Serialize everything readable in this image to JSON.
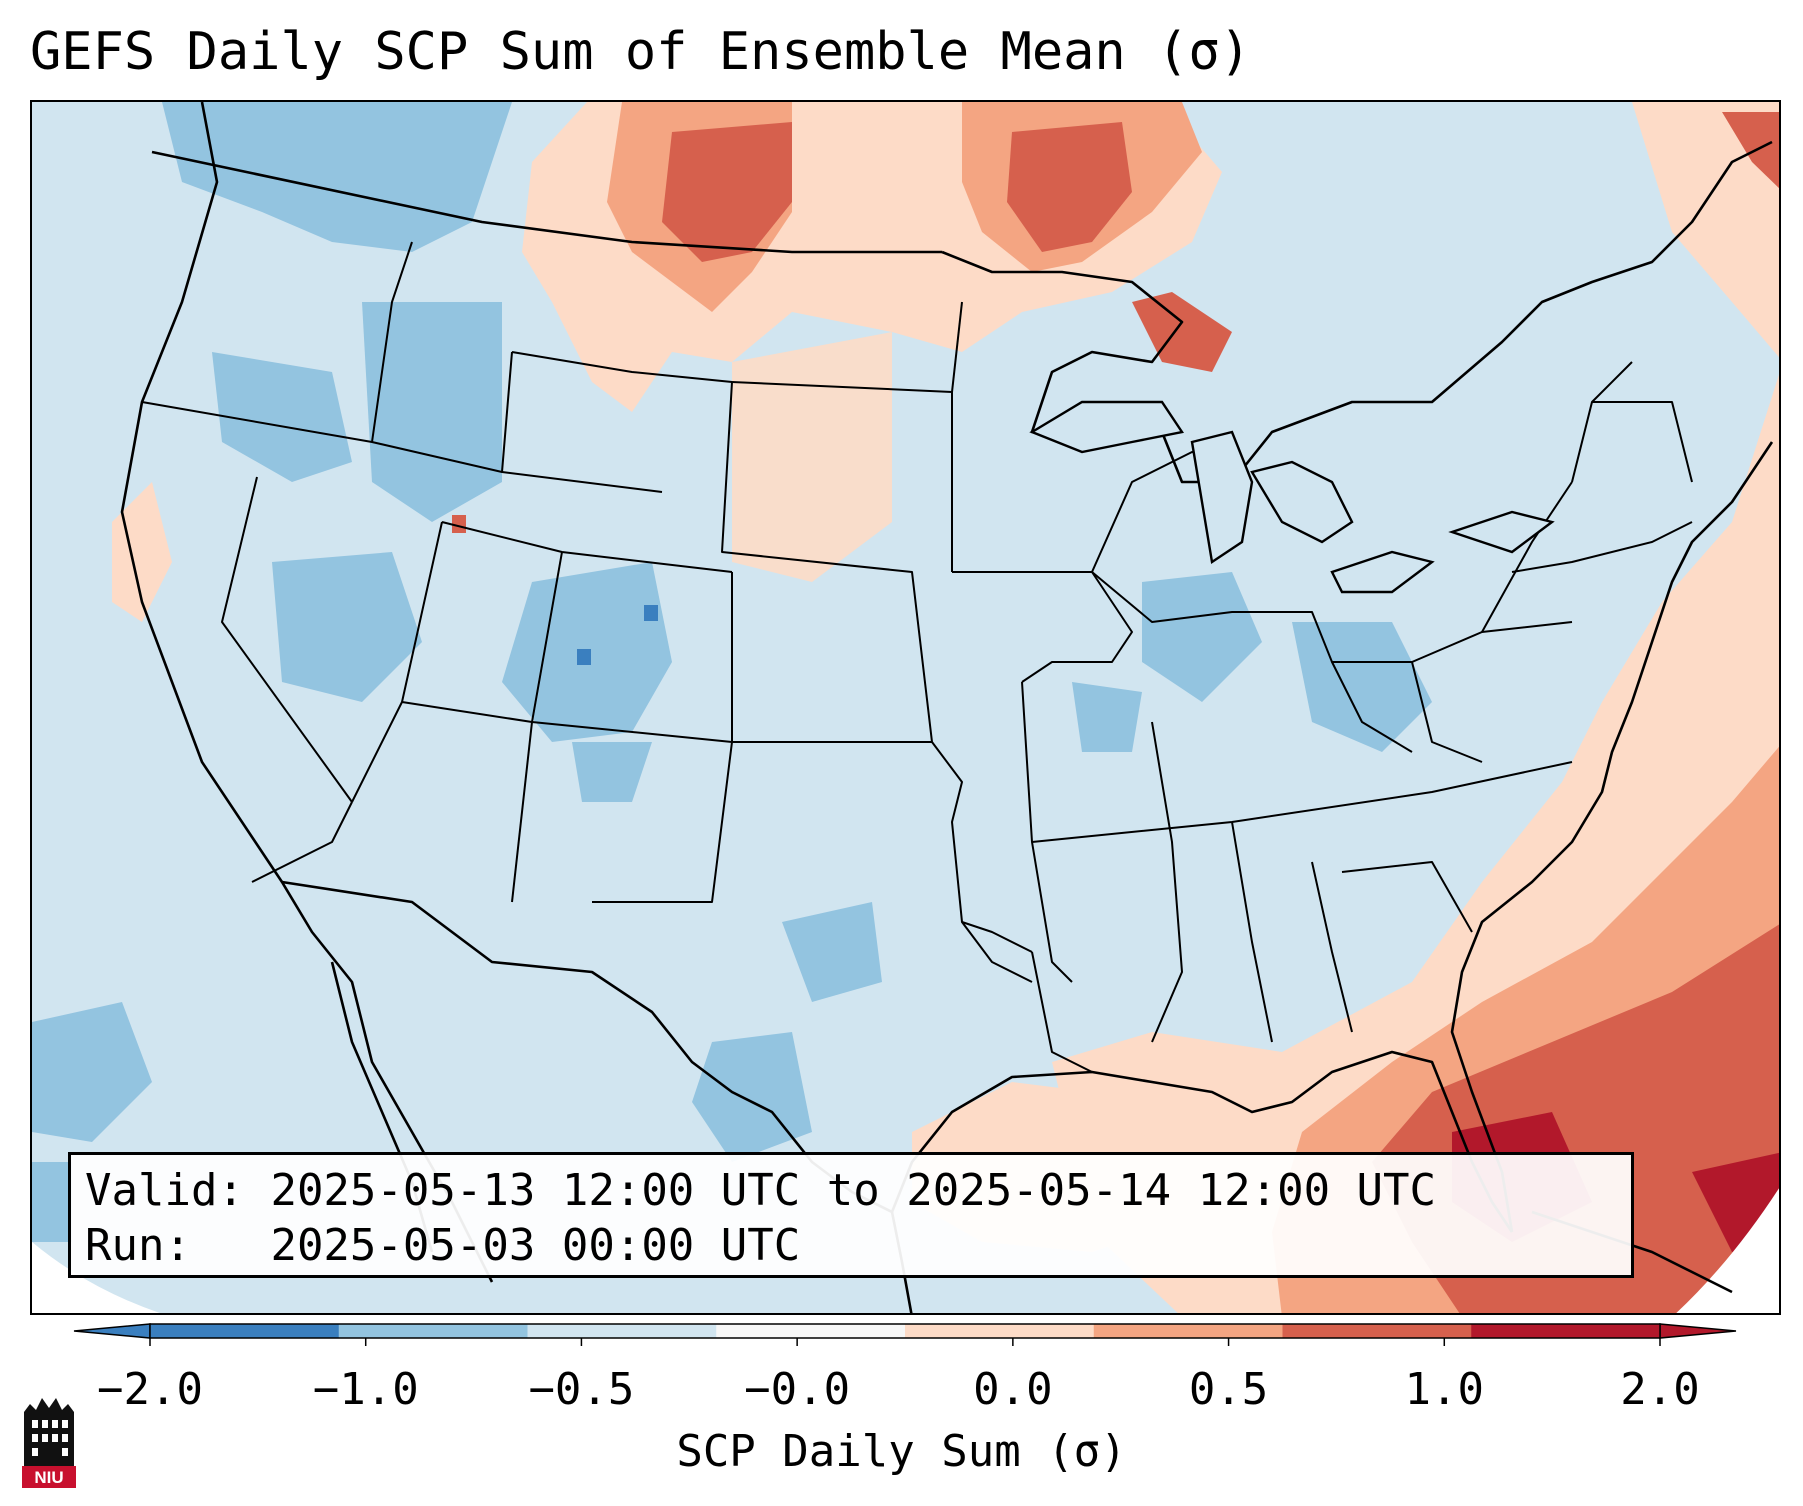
{
  "title": "GEFS Daily SCP Sum of Ensemble Mean (σ)",
  "info": {
    "valid_label": "Valid:",
    "valid_value": "2025-05-13 12:00 UTC to 2025-05-14 12:00 UTC",
    "run_label": "Run:",
    "run_value": "2025-05-03 00:00 UTC"
  },
  "colorbar": {
    "label": "SCP Daily Sum (σ)",
    "ticks": [
      "−2.0",
      "−1.0",
      "−0.5",
      "−0.0",
      "0.0",
      "0.5",
      "1.0",
      "2.0"
    ],
    "colors": [
      "#3a7fbf",
      "#93c4e0",
      "#d1e5f0",
      "#f7f7f7",
      "#fddbc7",
      "#f4a582",
      "#d6604d",
      "#b2182b"
    ],
    "extend": "both"
  },
  "logo": {
    "text": "NIU",
    "icon": "niu-tower-logo"
  },
  "map": {
    "background_field": "#d1e5f0",
    "projection": "lambert-conformal",
    "region": "CONUS"
  }
}
